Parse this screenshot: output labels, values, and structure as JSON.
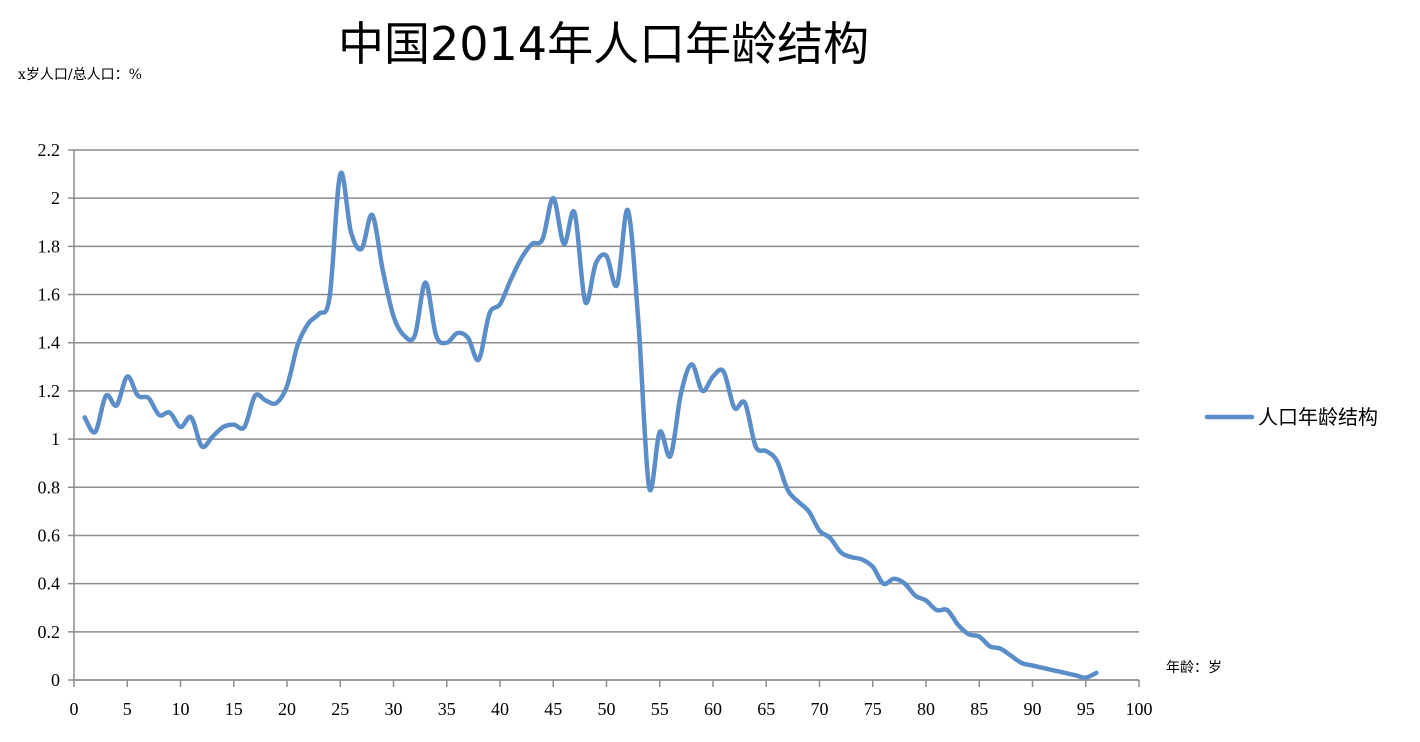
{
  "chart_data": {
    "type": "line",
    "title": "中国2014年人口年龄结构",
    "ylabel": "x岁人口/总人口：%",
    "xlabel": "年龄：岁",
    "xlim": [
      0,
      100
    ],
    "ylim": [
      0,
      2.2
    ],
    "x_ticks": [
      0,
      5,
      10,
      15,
      20,
      25,
      30,
      35,
      40,
      45,
      50,
      55,
      60,
      65,
      70,
      75,
      80,
      85,
      90,
      95,
      100
    ],
    "x_tick_labels": [
      "0",
      "5",
      "10",
      "15",
      "20",
      "25",
      "30",
      "35",
      "40",
      "45",
      "50",
      "55",
      "60",
      "65",
      "70",
      "75",
      "80",
      "85",
      "90",
      "95",
      "100"
    ],
    "y_ticks": [
      0,
      0.2,
      0.4,
      0.6,
      0.8,
      1,
      1.2,
      1.4,
      1.6,
      1.8,
      2,
      2.2
    ],
    "y_tick_labels": [
      "0",
      "0.2",
      "0.4",
      "0.6",
      "0.8",
      "1",
      "1.2",
      "1.4",
      "1.6",
      "1.8",
      "2",
      "2.2"
    ],
    "grid": "horizontal",
    "legend_position": "right",
    "series_color": "#5b8ec9",
    "series": [
      {
        "name": "人口年龄结构",
        "x": [
          1,
          2,
          3,
          4,
          5,
          6,
          7,
          8,
          9,
          10,
          11,
          12,
          13,
          14,
          15,
          16,
          17,
          18,
          19,
          20,
          21,
          22,
          23,
          24,
          25,
          26,
          27,
          28,
          29,
          30,
          31,
          32,
          33,
          34,
          35,
          36,
          37,
          38,
          39,
          40,
          41,
          42,
          43,
          44,
          45,
          46,
          47,
          48,
          49,
          50,
          51,
          52,
          53,
          54,
          55,
          56,
          57,
          58,
          59,
          60,
          61,
          62,
          63,
          64,
          65,
          66,
          67,
          68,
          69,
          70,
          71,
          72,
          73,
          74,
          75,
          76,
          77,
          78,
          79,
          80,
          81,
          82,
          83,
          84,
          85,
          86,
          87,
          88,
          89,
          90,
          91,
          92,
          93,
          94,
          95,
          96
        ],
        "values": [
          1.09,
          1.03,
          1.18,
          1.14,
          1.26,
          1.18,
          1.17,
          1.1,
          1.11,
          1.05,
          1.09,
          0.97,
          1.01,
          1.05,
          1.06,
          1.05,
          1.18,
          1.16,
          1.15,
          1.22,
          1.39,
          1.48,
          1.52,
          1.59,
          2.1,
          1.86,
          1.79,
          1.93,
          1.7,
          1.51,
          1.43,
          1.43,
          1.65,
          1.43,
          1.4,
          1.44,
          1.42,
          1.33,
          1.52,
          1.56,
          1.66,
          1.75,
          1.81,
          1.83,
          2.0,
          1.81,
          1.94,
          1.57,
          1.73,
          1.76,
          1.64,
          1.95,
          1.48,
          0.8,
          1.03,
          0.93,
          1.19,
          1.31,
          1.2,
          1.26,
          1.28,
          1.13,
          1.15,
          0.97,
          0.95,
          0.91,
          0.79,
          0.74,
          0.7,
          0.62,
          0.59,
          0.53,
          0.51,
          0.5,
          0.47,
          0.4,
          0.42,
          0.4,
          0.35,
          0.33,
          0.29,
          0.29,
          0.23,
          0.19,
          0.18,
          0.14,
          0.13,
          0.1,
          0.07,
          0.06,
          0.05,
          0.04,
          0.03,
          0.02,
          0.01,
          0.03
        ]
      }
    ]
  }
}
